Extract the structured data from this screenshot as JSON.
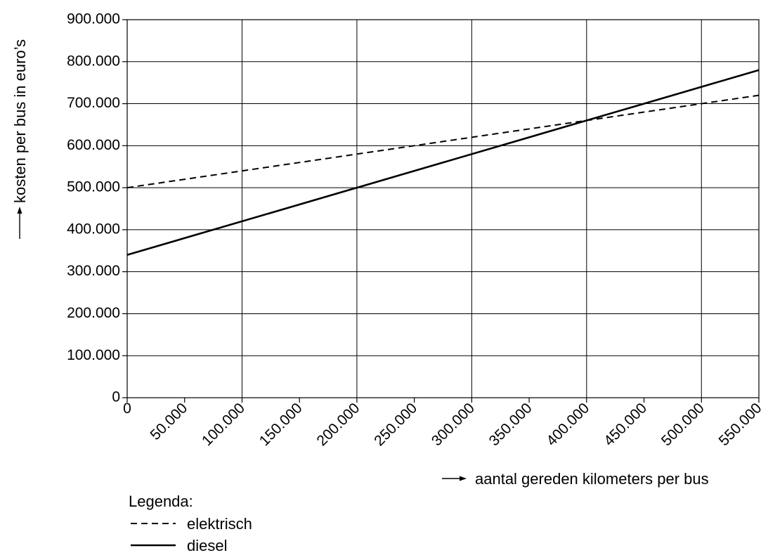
{
  "chart_data": {
    "type": "line",
    "title": "",
    "xlabel": "aantal gereden kilometers per bus",
    "ylabel": "kosten per bus in euro’s",
    "xlim": [
      0,
      550000
    ],
    "ylim": [
      0,
      900000
    ],
    "grid": true,
    "x_ticks": [
      0,
      50000,
      100000,
      150000,
      200000,
      250000,
      300000,
      350000,
      400000,
      450000,
      500000,
      550000
    ],
    "x_tick_labels": [
      "0",
      "50.000",
      "100.000",
      "150.000",
      "200.000",
      "250.000",
      "300.000",
      "350.000",
      "400.000",
      "450.000",
      "500.000",
      "550.000"
    ],
    "y_ticks": [
      0,
      100000,
      200000,
      300000,
      400000,
      500000,
      600000,
      700000,
      800000,
      900000
    ],
    "y_tick_labels": [
      "0",
      "100.000",
      "200.000",
      "300.000",
      "400.000",
      "500.000",
      "600.000",
      "700.000",
      "800.000",
      "900.000"
    ],
    "legend": {
      "title": "Legenda:",
      "placement": "bottom-left"
    },
    "series": [
      {
        "name": "elektrisch",
        "style": "dashed",
        "x": [
          0,
          550000
        ],
        "y": [
          500000,
          720000
        ]
      },
      {
        "name": "diesel",
        "style": "solid",
        "x": [
          0,
          550000
        ],
        "y": [
          340000,
          780000
        ]
      }
    ]
  }
}
